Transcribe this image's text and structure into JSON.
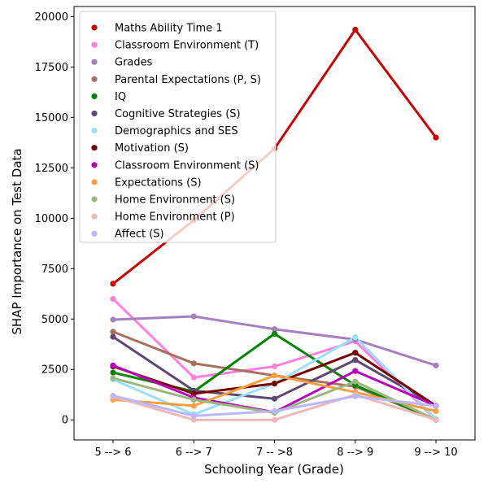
{
  "chart_data": {
    "type": "line",
    "categories": [
      "5 --> 6",
      "6 --> 7",
      "7 -- >8",
      "8 --> 9",
      "9 --> 10"
    ],
    "xlabel": "Schooling Year (Grade)",
    "ylabel": "SHAP Importance on Test Data",
    "ylim": [
      -1000,
      20500
    ],
    "yticks": [
      0,
      2500,
      5000,
      7500,
      10000,
      12500,
      15000,
      17500,
      20000
    ],
    "legend_position": "top-left",
    "series": [
      {
        "name": "Maths Ability Time 1",
        "color": "#cc0000",
        "values": [
          6750,
          9900,
          13450,
          19350,
          14000
        ]
      },
      {
        "name": "Classroom Environment (T)",
        "color": "#ff80dd",
        "values": [
          6000,
          2100,
          2650,
          3900,
          0
        ]
      },
      {
        "name": "Grades",
        "color": "#a67fbf",
        "values": [
          4970,
          5130,
          4500,
          3980,
          2700
        ]
      },
      {
        "name": "Parental Expectations (P, S)",
        "color": "#a87060",
        "values": [
          4370,
          2800,
          2200,
          1650,
          0
        ]
      },
      {
        "name": "IQ",
        "color": "#008800",
        "values": [
          2350,
          1400,
          4270,
          1720,
          0
        ]
      },
      {
        "name": "Cognitive Strategies (S)",
        "color": "#5c4a70",
        "values": [
          4120,
          1450,
          1050,
          2970,
          700
        ]
      },
      {
        "name": "Demographics and SES",
        "color": "#99e0ff",
        "values": [
          2000,
          270,
          1800,
          4100,
          50
        ]
      },
      {
        "name": "Motivation (S)",
        "color": "#770000",
        "values": [
          2650,
          1300,
          1800,
          3330,
          700
        ]
      },
      {
        "name": "Classroom Environment (S)",
        "color": "#bb00bb",
        "values": [
          2700,
          1100,
          380,
          2420,
          700
        ]
      },
      {
        "name": "Expectations (S)",
        "color": "#ffa040",
        "values": [
          1000,
          700,
          2200,
          1370,
          430
        ]
      },
      {
        "name": "Home Environment (S)",
        "color": "#9ab87a",
        "values": [
          2070,
          1000,
          350,
          1900,
          0
        ]
      },
      {
        "name": "Home Environment (P)",
        "color": "#f0b8b8",
        "values": [
          1150,
          0,
          0,
          1250,
          0
        ]
      },
      {
        "name": "Affect (S)",
        "color": "#bbb6ff",
        "values": [
          1200,
          200,
          430,
          1170,
          700
        ]
      }
    ]
  }
}
